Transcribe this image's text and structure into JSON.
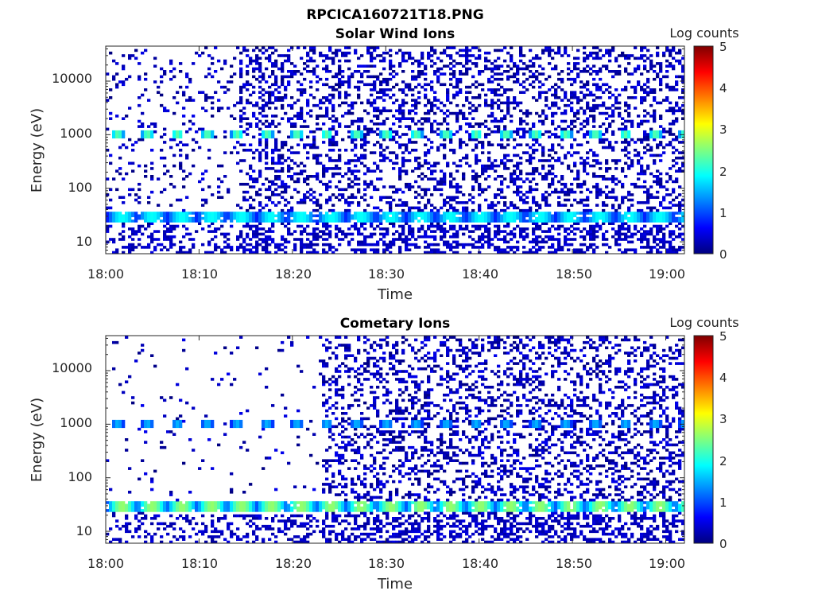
{
  "figure": {
    "title": "RPCICA160721T18.PNG"
  },
  "chart_data": [
    {
      "type": "heatmap",
      "title": "Solar Wind Ions",
      "xlabel": "Time",
      "ylabel": "Energy (eV)",
      "x_range": [
        "18:00",
        "19:02"
      ],
      "x_ticks": [
        "18:00",
        "18:10",
        "18:20",
        "18:30",
        "18:40",
        "18:50",
        "19:00"
      ],
      "y_scale": "log",
      "y_range_ev": [
        6,
        45000
      ],
      "y_ticks": [
        "10",
        "100",
        "1000",
        "10000"
      ],
      "colorbar": {
        "label": "Log counts",
        "range": [
          0,
          5
        ],
        "ticks": [
          "0",
          "1",
          "2",
          "3",
          "4",
          "5"
        ],
        "colormap": "jet"
      },
      "colormap_stops": [
        "#00007f",
        "#0000ff",
        "#007fff",
        "#00ffff",
        "#7fff7f",
        "#ffff00",
        "#ff7f00",
        "#ff0000",
        "#7f0000"
      ],
      "features": {
        "peak_1000eV_log_counts": 2.3,
        "peak_30eV_log_counts": 1.9,
        "sparse_background_from": "18:00",
        "dense_background_from": "18:14",
        "sweep_period_min": 3.2
      }
    },
    {
      "type": "heatmap",
      "title": "Cometary Ions",
      "xlabel": "Time",
      "ylabel": "Energy (eV)",
      "x_range": [
        "18:00",
        "19:02"
      ],
      "x_ticks": [
        "18:00",
        "18:10",
        "18:20",
        "18:30",
        "18:40",
        "18:50",
        "19:00"
      ],
      "y_scale": "log",
      "y_range_ev": [
        6,
        45000
      ],
      "y_ticks": [
        "10",
        "100",
        "1000",
        "10000"
      ],
      "colorbar": {
        "label": "Log counts",
        "range": [
          0,
          5
        ],
        "ticks": [
          "0",
          "1",
          "2",
          "3",
          "4",
          "5"
        ],
        "colormap": "jet"
      },
      "colormap_stops": [
        "#00007f",
        "#0000ff",
        "#007fff",
        "#00ffff",
        "#7fff7f",
        "#ffff00",
        "#ff7f00",
        "#ff0000",
        "#7f0000"
      ],
      "features": {
        "peak_1000eV_log_counts": 1.5,
        "peak_30eV_log_counts": 2.6,
        "sparse_background_from": "18:00",
        "dense_background_from": "18:23",
        "sweep_period_min": 3.2
      }
    }
  ]
}
